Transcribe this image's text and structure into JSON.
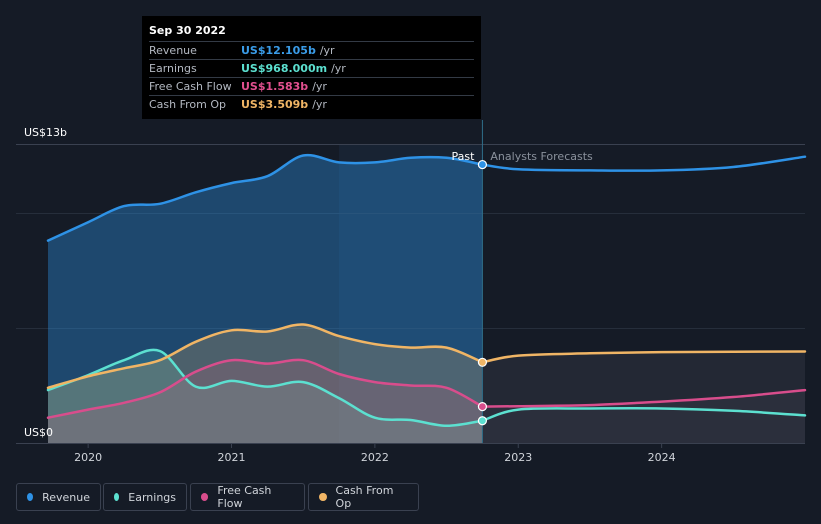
{
  "tooltip": {
    "date": "Sep 30 2022",
    "rows": [
      {
        "label": "Revenue",
        "value": "US$12.105b",
        "unit": "/yr",
        "color": "#3a9ce8"
      },
      {
        "label": "Earnings",
        "value": "US$968.000m",
        "unit": "/yr",
        "color": "#5ce0d0"
      },
      {
        "label": "Free Cash Flow",
        "value": "US$1.583b",
        "unit": "/yr",
        "color": "#e2508f"
      },
      {
        "label": "Cash From Op",
        "value": "US$3.509b",
        "unit": "/yr",
        "color": "#f0b565"
      }
    ]
  },
  "legend": [
    {
      "label": "Revenue",
      "color": "#2e92e6"
    },
    {
      "label": "Earnings",
      "color": "#5ce0d0"
    },
    {
      "label": "Free Cash Flow",
      "color": "#d84d8c"
    },
    {
      "label": "Cash From Op",
      "color": "#f0b565"
    }
  ],
  "chart_data": {
    "type": "line",
    "y_top_label": "US$13b",
    "y_bottom_label": "US$0",
    "ylim": [
      0,
      13
    ],
    "xlim": [
      2019.72,
      2025.0
    ],
    "x_ticks": [
      2020,
      2021,
      2022,
      2023,
      2024
    ],
    "x_tick_labels": [
      "2020",
      "2021",
      "2022",
      "2023",
      "2024"
    ],
    "divider_x": 2022.75,
    "highlight_start": 2021.75,
    "past_label": "Past",
    "forecast_label": "Analysts Forecasts",
    "series": [
      {
        "name": "Revenue",
        "color": "#2e92e6",
        "past": [
          [
            2019.72,
            8.8
          ],
          [
            2020.0,
            9.6
          ],
          [
            2020.25,
            10.3
          ],
          [
            2020.5,
            10.4
          ],
          [
            2020.75,
            10.9
          ],
          [
            2021.0,
            11.3
          ],
          [
            2021.25,
            11.6
          ],
          [
            2021.5,
            12.5
          ],
          [
            2021.75,
            12.2
          ],
          [
            2022.0,
            12.2
          ],
          [
            2022.25,
            12.4
          ],
          [
            2022.5,
            12.4
          ],
          [
            2022.75,
            12.105
          ]
        ],
        "forecast": [
          [
            2022.75,
            12.105
          ],
          [
            2023.0,
            11.9
          ],
          [
            2023.5,
            11.85
          ],
          [
            2024.0,
            11.85
          ],
          [
            2024.5,
            12.0
          ],
          [
            2025.0,
            12.45
          ]
        ]
      },
      {
        "name": "Earnings",
        "color": "#5ce0d0",
        "past": [
          [
            2019.72,
            2.3
          ],
          [
            2020.0,
            2.95
          ],
          [
            2020.25,
            3.6
          ],
          [
            2020.5,
            4.0
          ],
          [
            2020.75,
            2.45
          ],
          [
            2021.0,
            2.7
          ],
          [
            2021.25,
            2.45
          ],
          [
            2021.5,
            2.65
          ],
          [
            2021.75,
            1.95
          ],
          [
            2022.0,
            1.1
          ],
          [
            2022.25,
            1.0
          ],
          [
            2022.5,
            0.75
          ],
          [
            2022.75,
            0.968
          ]
        ],
        "forecast": [
          [
            2022.75,
            0.968
          ],
          [
            2023.0,
            1.45
          ],
          [
            2023.5,
            1.5
          ],
          [
            2024.0,
            1.5
          ],
          [
            2024.5,
            1.4
          ],
          [
            2025.0,
            1.2
          ]
        ]
      },
      {
        "name": "Free Cash Flow",
        "color": "#d84d8c",
        "past": [
          [
            2019.72,
            1.1
          ],
          [
            2020.0,
            1.45
          ],
          [
            2020.25,
            1.75
          ],
          [
            2020.5,
            2.2
          ],
          [
            2020.75,
            3.1
          ],
          [
            2021.0,
            3.6
          ],
          [
            2021.25,
            3.45
          ],
          [
            2021.5,
            3.6
          ],
          [
            2021.75,
            3.0
          ],
          [
            2022.0,
            2.65
          ],
          [
            2022.25,
            2.5
          ],
          [
            2022.5,
            2.4
          ],
          [
            2022.75,
            1.583
          ]
        ],
        "forecast": [
          [
            2022.75,
            1.583
          ],
          [
            2023.0,
            1.6
          ],
          [
            2023.5,
            1.65
          ],
          [
            2024.0,
            1.8
          ],
          [
            2024.5,
            2.0
          ],
          [
            2025.0,
            2.3
          ]
        ]
      },
      {
        "name": "Cash From Op",
        "color": "#f0b565",
        "past": [
          [
            2019.72,
            2.4
          ],
          [
            2020.0,
            2.9
          ],
          [
            2020.25,
            3.25
          ],
          [
            2020.5,
            3.6
          ],
          [
            2020.75,
            4.4
          ],
          [
            2021.0,
            4.9
          ],
          [
            2021.25,
            4.85
          ],
          [
            2021.5,
            5.15
          ],
          [
            2021.75,
            4.65
          ],
          [
            2022.0,
            4.3
          ],
          [
            2022.25,
            4.15
          ],
          [
            2022.5,
            4.15
          ],
          [
            2022.75,
            3.509
          ]
        ],
        "forecast": [
          [
            2022.75,
            3.509
          ],
          [
            2023.0,
            3.8
          ],
          [
            2023.5,
            3.9
          ],
          [
            2024.0,
            3.95
          ],
          [
            2024.5,
            3.97
          ],
          [
            2025.0,
            3.98
          ]
        ]
      }
    ]
  }
}
